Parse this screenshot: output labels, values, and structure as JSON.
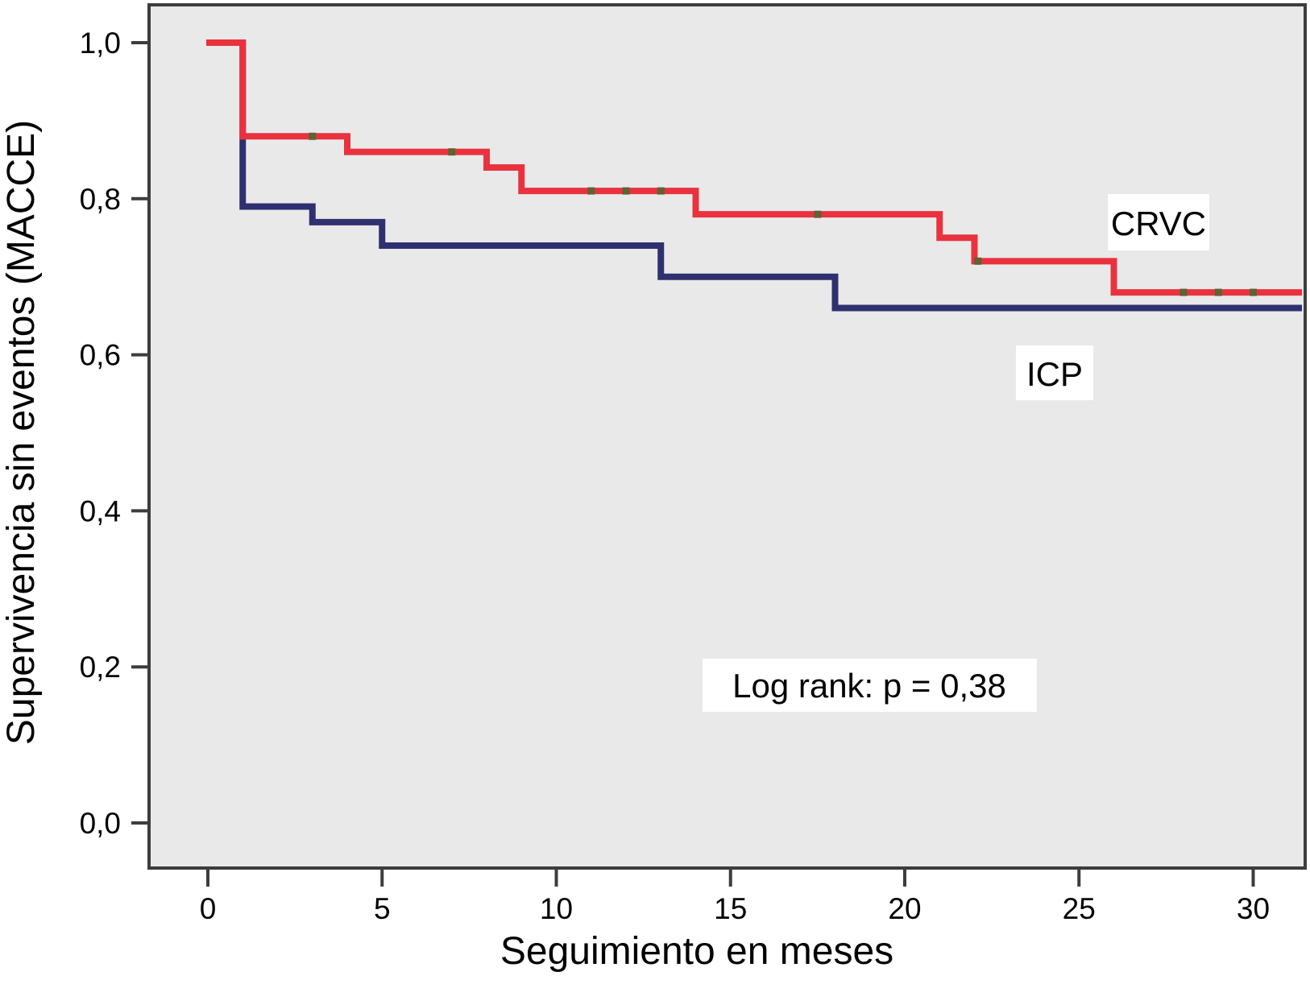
{
  "figure": {
    "y_axis": {
      "title": "Supervivencia sin eventos (MACCE)",
      "tick_labels": [
        "0,0",
        "0,2",
        "0,4",
        "0,6",
        "0,8",
        "1,0"
      ],
      "tick_values": [
        0,
        0.2,
        0.4,
        0.6,
        0.8,
        1.0
      ]
    },
    "x_axis": {
      "title": "Seguimiento en meses",
      "tick_labels": [
        "0",
        "5",
        "10",
        "15",
        "20",
        "25",
        "30"
      ],
      "tick_values": [
        0,
        5,
        10,
        15,
        20,
        25,
        30
      ]
    },
    "annotations": {
      "crvc_label": "CRVC",
      "icp_label": "ICP",
      "log_rank": "Log rank: p = 0,38"
    },
    "colors": {
      "crvc": "#e9323e",
      "icp": "#2f3070",
      "plot_background": "#e9e9e9",
      "axis": "#3d3d3d",
      "censor_mark": "#5f6233",
      "label_box": "#ffffff"
    }
  },
  "chart_data": {
    "type": "line",
    "subtype": "kaplan-meier-step-curves",
    "title": "",
    "xlabel": "Seguimiento en meses",
    "ylabel": "Supervivencia sin eventos (MACCE)",
    "xlim": [
      -1.7,
      31.5
    ],
    "ylim": [
      -0.058,
      1.049
    ],
    "x_ticks": [
      0,
      5,
      10,
      15,
      20,
      25,
      30
    ],
    "y_ticks": [
      0,
      0.2,
      0.4,
      0.6,
      0.8,
      1.0
    ],
    "grid": false,
    "legend_position": "inline-labels",
    "p_value_annotation": "Log rank: p = 0,38",
    "series": [
      {
        "name": "ICP",
        "color": "#2f3070",
        "steps": [
          [
            0,
            1.0
          ],
          [
            1,
            0.79
          ],
          [
            3,
            0.77
          ],
          [
            5,
            0.74
          ],
          [
            13,
            0.7
          ],
          [
            18,
            0.66
          ]
        ],
        "end_month": 31.4,
        "censor_marks": []
      },
      {
        "name": "CRVC",
        "color": "#e9323e",
        "steps": [
          [
            0,
            1.0
          ],
          [
            1,
            0.88
          ],
          [
            4,
            0.86
          ],
          [
            8,
            0.84
          ],
          [
            9,
            0.81
          ],
          [
            14,
            0.78
          ],
          [
            21,
            0.75
          ],
          [
            22,
            0.72
          ],
          [
            26,
            0.68
          ]
        ],
        "end_month": 31.4,
        "censor_marks": [
          [
            3,
            0.88
          ],
          [
            7,
            0.86
          ],
          [
            11,
            0.81
          ],
          [
            12,
            0.81
          ],
          [
            13,
            0.81
          ],
          [
            17.5,
            0.78
          ],
          [
            22.1,
            0.72
          ],
          [
            28,
            0.68
          ],
          [
            29,
            0.68
          ],
          [
            30,
            0.68
          ]
        ]
      }
    ]
  }
}
